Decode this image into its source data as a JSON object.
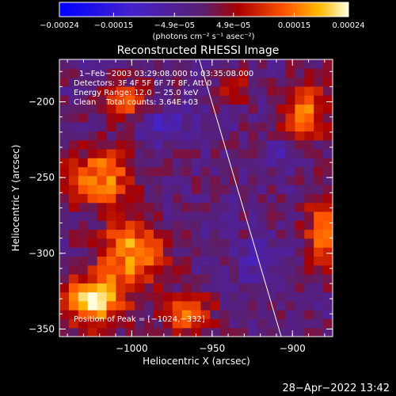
{
  "chart_data": {
    "type": "heatmap",
    "title": "Reconstructed RHESSI Image",
    "xlabel": "Heliocentric X (arcsec)",
    "ylabel": "Heliocentric Y (arcsec)",
    "xlim": [
      -1045,
      -875
    ],
    "ylim": [
      -355,
      -172
    ],
    "xticks": [
      {
        "value": -1000,
        "label": "−1000"
      },
      {
        "value": -950,
        "label": "−950"
      },
      {
        "value": -900,
        "label": "−900"
      }
    ],
    "yticks": [
      {
        "value": -200,
        "label": "−200"
      },
      {
        "value": -250,
        "label": "−250"
      },
      {
        "value": -300,
        "label": "−300"
      },
      {
        "value": -350,
        "label": "−350"
      }
    ],
    "colorbar": {
      "range": [
        -0.00024,
        0.00024
      ],
      "tick_values": [
        -0.00024,
        -0.00015,
        -4.9e-05,
        4.9e-05,
        0.00015,
        0.00024
      ],
      "tick_labels": [
        "−0.00024",
        "−0.00015",
        "−4.9e−05",
        "4.9e−05",
        "0.00015",
        "0.00024"
      ],
      "units_text": "(photons cm⁻² s⁻¹ asec⁻²)"
    },
    "annotations": [
      "1−Feb−2003 03:29:08.000 to 03:35:08.000",
      "Detectors: 3F 4F 5F 6F 7F 8F, Att 0",
      "Energy Range: 12.0 − 25.0 keV",
      "Clean    Total counts: 3.64E+03"
    ],
    "peak_label": "Position of Peak = [−1024,−332]",
    "peak_position": [
      -1024,
      -332
    ],
    "limb_line": [
      [
        -958,
        -172
      ],
      [
        -907,
        -355
      ]
    ],
    "bright_regions": [
      {
        "x": -1020,
        "y": -250,
        "rx": 22,
        "ry": 18,
        "level": 0.75
      },
      {
        "x": -1000,
        "y": -300,
        "rx": 20,
        "ry": 22,
        "level": 0.8
      },
      {
        "x": -1024,
        "y": -332,
        "rx": 18,
        "ry": 16,
        "level": 1.0
      },
      {
        "x": -1005,
        "y": -200,
        "rx": 18,
        "ry": 14,
        "level": 0.55
      },
      {
        "x": -965,
        "y": -340,
        "rx": 16,
        "ry": 14,
        "level": 0.6
      },
      {
        "x": -893,
        "y": -205,
        "rx": 14,
        "ry": 20,
        "level": 0.7
      },
      {
        "x": -880,
        "y": -285,
        "rx": 12,
        "ry": 26,
        "level": 0.6
      },
      {
        "x": -935,
        "y": -190,
        "rx": 10,
        "ry": 10,
        "level": 0.4
      }
    ],
    "dark_regions": [
      {
        "x": -980,
        "y": -215,
        "rx": 16,
        "ry": 12,
        "level": -0.4
      },
      {
        "x": -920,
        "y": -305,
        "rx": 14,
        "ry": 12,
        "level": -0.35
      },
      {
        "x": -905,
        "y": -235,
        "rx": 10,
        "ry": 10,
        "level": -0.3
      }
    ]
  },
  "footer": {
    "timestamp": "28−Apr−2022 13:42"
  }
}
